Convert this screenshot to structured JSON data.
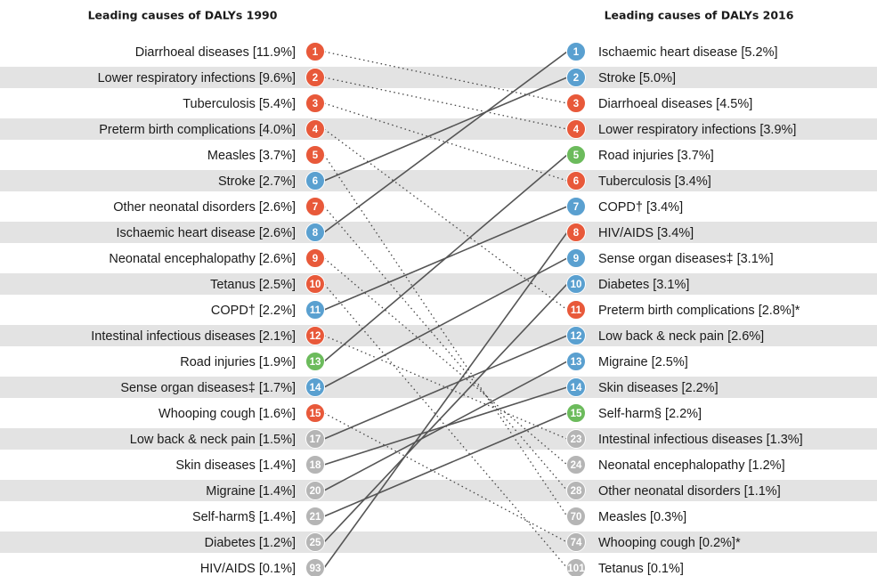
{
  "left": {
    "title": "Leading causes of DALYs 1990",
    "items": [
      {
        "rank": 1,
        "label": "Diarrhoeal diseases [11.9%]",
        "color": "#e8593a"
      },
      {
        "rank": 2,
        "label": "Lower respiratory infections [9.6%]",
        "color": "#e8593a"
      },
      {
        "rank": 3,
        "label": "Tuberculosis [5.4%]",
        "color": "#e8593a"
      },
      {
        "rank": 4,
        "label": "Preterm birth complications [4.0%]",
        "color": "#e8593a"
      },
      {
        "rank": 5,
        "label": "Measles [3.7%]",
        "color": "#e8593a"
      },
      {
        "rank": 6,
        "label": "Stroke [2.7%]",
        "color": "#5aa0d0"
      },
      {
        "rank": 7,
        "label": "Other neonatal disorders [2.6%]",
        "color": "#e8593a"
      },
      {
        "rank": 8,
        "label": "Ischaemic heart disease [2.6%]",
        "color": "#5aa0d0"
      },
      {
        "rank": 9,
        "label": "Neonatal encephalopathy [2.6%]",
        "color": "#e8593a"
      },
      {
        "rank": 10,
        "label": "Tetanus [2.5%]",
        "color": "#e8593a"
      },
      {
        "rank": 11,
        "label": "COPD† [2.2%]",
        "color": "#5aa0d0"
      },
      {
        "rank": 12,
        "label": "Intestinal infectious diseases [2.1%]",
        "color": "#e8593a"
      },
      {
        "rank": 13,
        "label": "Road injuries [1.9%]",
        "color": "#6cbb5c"
      },
      {
        "rank": 14,
        "label": "Sense organ diseases‡ [1.7%]",
        "color": "#5aa0d0"
      },
      {
        "rank": 15,
        "label": "Whooping cough [1.6%]",
        "color": "#e8593a"
      },
      {
        "rank": 17,
        "label": "Low back & neck pain [1.5%]",
        "color": "#b5b5b5"
      },
      {
        "rank": 18,
        "label": "Skin diseases [1.4%]",
        "color": "#b5b5b5"
      },
      {
        "rank": 20,
        "label": "Migraine [1.4%]",
        "color": "#b5b5b5"
      },
      {
        "rank": 21,
        "label": "Self-harm§ [1.4%]",
        "color": "#b5b5b5"
      },
      {
        "rank": 25,
        "label": "Diabetes [1.2%]",
        "color": "#b5b5b5"
      },
      {
        "rank": 93,
        "label": "HIV/AIDS [0.1%]",
        "color": "#b5b5b5"
      }
    ]
  },
  "right": {
    "title": "Leading causes of DALYs 2016",
    "items": [
      {
        "rank": 1,
        "label": "Ischaemic heart disease [5.2%]",
        "color": "#5aa0d0"
      },
      {
        "rank": 2,
        "label": "Stroke [5.0%]",
        "color": "#5aa0d0"
      },
      {
        "rank": 3,
        "label": "Diarrhoeal diseases [4.5%]",
        "color": "#e8593a"
      },
      {
        "rank": 4,
        "label": "Lower respiratory infections [3.9%]",
        "color": "#e8593a"
      },
      {
        "rank": 5,
        "label": "Road injuries [3.7%]",
        "color": "#6cbb5c"
      },
      {
        "rank": 6,
        "label": "Tuberculosis [3.4%]",
        "color": "#e8593a"
      },
      {
        "rank": 7,
        "label": "COPD† [3.4%]",
        "color": "#5aa0d0"
      },
      {
        "rank": 8,
        "label": "HIV/AIDS [3.4%]",
        "color": "#e8593a"
      },
      {
        "rank": 9,
        "label": "Sense organ diseases‡ [3.1%]",
        "color": "#5aa0d0"
      },
      {
        "rank": 10,
        "label": "Diabetes [3.1%]",
        "color": "#5aa0d0"
      },
      {
        "rank": 11,
        "label": "Preterm birth complications [2.8%]*",
        "color": "#e8593a"
      },
      {
        "rank": 12,
        "label": "Low back & neck pain [2.6%]",
        "color": "#5aa0d0"
      },
      {
        "rank": 13,
        "label": "Migraine [2.5%]",
        "color": "#5aa0d0"
      },
      {
        "rank": 14,
        "label": "Skin diseases [2.2%]",
        "color": "#5aa0d0"
      },
      {
        "rank": 15,
        "label": "Self-harm§ [2.2%]",
        "color": "#6cbb5c"
      },
      {
        "rank": 23,
        "label": "Intestinal infectious diseases [1.3%]",
        "color": "#b5b5b5"
      },
      {
        "rank": 24,
        "label": "Neonatal encephalopathy [1.2%]",
        "color": "#b5b5b5"
      },
      {
        "rank": 28,
        "label": "Other neonatal disorders [1.1%]",
        "color": "#b5b5b5"
      },
      {
        "rank": 70,
        "label": "Measles [0.3%]",
        "color": "#b5b5b5"
      },
      {
        "rank": 74,
        "label": "Whooping cough [0.2%]*",
        "color": "#b5b5b5"
      },
      {
        "rank": 101,
        "label": "Tetanus [0.1%]",
        "color": "#b5b5b5"
      }
    ]
  }
}
